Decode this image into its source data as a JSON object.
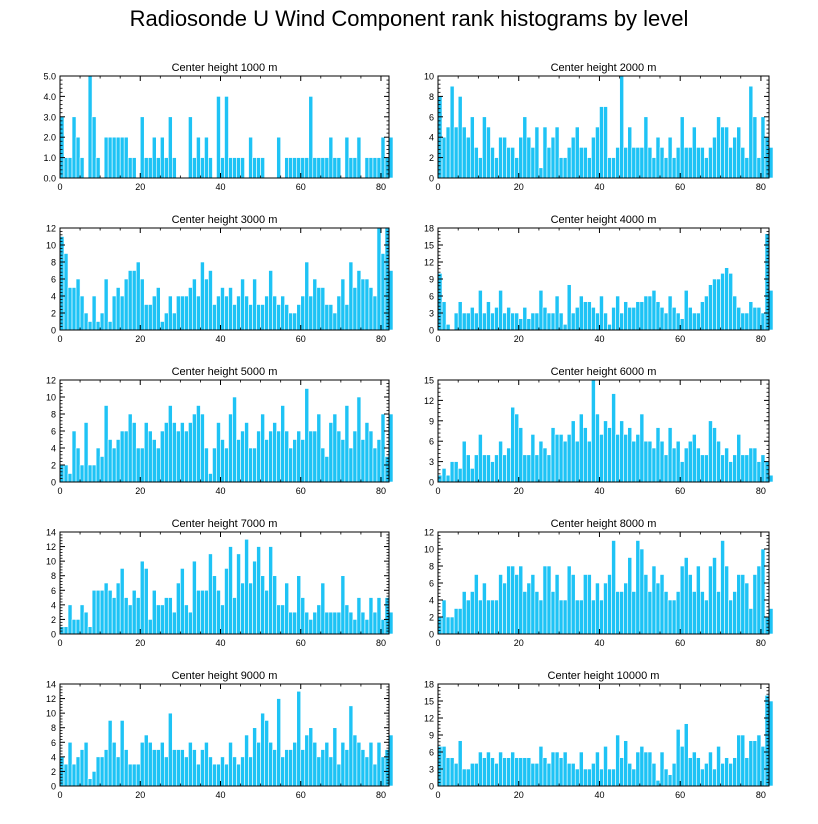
{
  "title": "Radiosonde U Wind Component rank histograms by level",
  "colors": {
    "bar": "#1ec3f5",
    "bar_edge": "#ffffff",
    "frame": "#000000"
  },
  "chart_data": [
    {
      "type": "bar",
      "title": "Center height 1000 m",
      "xlim": [
        0,
        82
      ],
      "ylim": [
        0,
        5
      ],
      "xticks": [
        0,
        20,
        40,
        60,
        80
      ],
      "yticks": [
        "0.0",
        "1.0",
        "2.0",
        "3.0",
        "4.0",
        "5.0"
      ],
      "ytick_values": [
        0,
        1,
        2,
        3,
        4,
        5
      ],
      "values": [
        3,
        1,
        1,
        3,
        2,
        1,
        0,
        5,
        3,
        1,
        0,
        2,
        2,
        2,
        2,
        2,
        2,
        1,
        1,
        0,
        3,
        1,
        1,
        2,
        1,
        2,
        1,
        3,
        1,
        0,
        0,
        0,
        3,
        1,
        2,
        1,
        2,
        1,
        0,
        4,
        1,
        4,
        1,
        1,
        1,
        1,
        0,
        2,
        1,
        1,
        1,
        0,
        0,
        0,
        2,
        0,
        1,
        1,
        1,
        1,
        1,
        1,
        4,
        1,
        1,
        1,
        1,
        2,
        1,
        1,
        0,
        2,
        1,
        1,
        2,
        0,
        1,
        1,
        1,
        1,
        2,
        1,
        2
      ]
    },
    {
      "type": "bar",
      "title": "Center height 2000 m",
      "xlim": [
        0,
        82
      ],
      "ylim": [
        0,
        10
      ],
      "xticks": [
        0,
        20,
        40,
        60,
        80
      ],
      "yticks": [
        "0",
        "2",
        "4",
        "6",
        "8",
        "10"
      ],
      "ytick_values": [
        0,
        2,
        4,
        6,
        8,
        10
      ],
      "values": [
        8,
        4,
        5,
        9,
        5,
        8,
        5,
        4,
        6,
        3,
        2,
        6,
        5,
        3,
        2,
        4,
        4,
        3,
        3,
        2,
        4,
        6,
        4,
        3,
        5,
        1,
        5,
        3,
        4,
        5,
        2,
        2,
        3,
        4,
        5,
        3,
        3,
        2,
        4,
        5,
        7,
        7,
        2,
        2,
        3,
        10,
        3,
        5,
        3,
        3,
        3,
        6,
        3,
        2,
        4,
        3,
        2,
        4,
        2,
        3,
        6,
        3,
        3,
        5,
        3,
        3,
        2,
        3,
        4,
        6,
        5,
        5,
        3,
        4,
        5,
        3,
        2,
        9,
        6,
        2,
        6,
        4,
        3
      ]
    },
    {
      "type": "bar",
      "title": "Center height 3000 m",
      "xlim": [
        0,
        82
      ],
      "ylim": [
        0,
        12
      ],
      "xticks": [
        0,
        20,
        40,
        60,
        80
      ],
      "yticks": [
        "0",
        "2",
        "4",
        "6",
        "8",
        "10",
        "12"
      ],
      "ytick_values": [
        0,
        2,
        4,
        6,
        8,
        10,
        12
      ],
      "values": [
        11,
        9,
        5,
        5,
        6,
        4,
        2,
        1,
        4,
        1,
        2,
        6,
        1,
        4,
        5,
        4,
        6,
        7,
        7,
        8,
        6,
        3,
        3,
        4,
        5,
        1,
        2,
        4,
        2,
        4,
        4,
        4,
        5,
        6,
        4,
        8,
        6,
        7,
        3,
        4,
        5,
        4,
        5,
        3,
        4,
        6,
        4,
        3,
        6,
        3,
        3,
        4,
        7,
        4,
        3,
        4,
        3,
        2,
        2,
        3,
        4,
        8,
        4,
        6,
        5,
        5,
        3,
        3,
        2,
        4,
        6,
        3,
        8,
        5,
        7,
        6,
        6,
        5,
        4,
        12,
        9,
        12,
        7
      ]
    },
    {
      "type": "bar",
      "title": "Center height 4000 m",
      "xlim": [
        0,
        82
      ],
      "ylim": [
        0,
        18
      ],
      "xticks": [
        0,
        20,
        40,
        60,
        80
      ],
      "yticks": [
        "0",
        "3",
        "6",
        "9",
        "12",
        "15",
        "18"
      ],
      "ytick_values": [
        0,
        3,
        6,
        9,
        12,
        15,
        18
      ],
      "values": [
        10,
        5,
        1,
        0,
        3,
        5,
        3,
        3,
        4,
        3,
        7,
        3,
        5,
        3,
        4,
        7,
        3,
        4,
        3,
        3,
        2,
        4,
        2,
        3,
        3,
        7,
        4,
        3,
        3,
        6,
        3,
        1,
        8,
        3,
        4,
        6,
        5,
        5,
        4,
        3,
        6,
        3,
        1,
        4,
        6,
        3,
        5,
        4,
        4,
        5,
        5,
        6,
        6,
        7,
        5,
        4,
        3,
        6,
        4,
        3,
        2,
        7,
        4,
        3,
        3,
        5,
        6,
        8,
        9,
        9,
        10,
        11,
        10,
        6,
        4,
        3,
        3,
        5,
        4,
        4,
        3,
        17,
        7
      ]
    },
    {
      "type": "bar",
      "title": "Center height 5000 m",
      "xlim": [
        0,
        82
      ],
      "ylim": [
        0,
        12
      ],
      "xticks": [
        0,
        20,
        40,
        60,
        80
      ],
      "yticks": [
        "0",
        "2",
        "4",
        "6",
        "8",
        "10",
        "12"
      ],
      "ytick_values": [
        0,
        2,
        4,
        6,
        8,
        10,
        12
      ],
      "values": [
        2,
        2,
        1,
        6,
        4,
        2,
        7,
        2,
        2,
        4,
        3,
        9,
        5,
        4,
        5,
        6,
        6,
        8,
        7,
        4,
        4,
        7,
        6,
        5,
        4,
        6,
        7,
        9,
        7,
        6,
        7,
        6,
        7,
        8,
        9,
        8,
        4,
        1,
        4,
        7,
        5,
        4,
        8,
        10,
        5,
        6,
        7,
        4,
        4,
        6,
        8,
        5,
        6,
        7,
        6,
        9,
        6,
        4,
        5,
        6,
        5,
        11,
        6,
        6,
        8,
        4,
        3,
        7,
        8,
        6,
        5,
        9,
        4,
        6,
        10,
        5,
        7,
        6,
        4,
        5,
        8,
        3,
        8
      ]
    },
    {
      "type": "bar",
      "title": "Center height 6000 m",
      "xlim": [
        0,
        82
      ],
      "ylim": [
        0,
        15
      ],
      "xticks": [
        0,
        20,
        40,
        60,
        80
      ],
      "yticks": [
        "0",
        "3",
        "6",
        "9",
        "12",
        "15"
      ],
      "ytick_values": [
        0,
        3,
        6,
        9,
        12,
        15
      ],
      "values": [
        1,
        2,
        1,
        3,
        3,
        2,
        6,
        4,
        2,
        4,
        7,
        4,
        4,
        3,
        4,
        6,
        4,
        5,
        11,
        10,
        8,
        4,
        4,
        7,
        4,
        6,
        5,
        4,
        8,
        7,
        7,
        6,
        7,
        9,
        6,
        10,
        8,
        6,
        15,
        10,
        7,
        9,
        8,
        13,
        7,
        9,
        7,
        8,
        6,
        7,
        10,
        6,
        6,
        5,
        8,
        6,
        4,
        8,
        5,
        6,
        3,
        5,
        6,
        7,
        5,
        4,
        4,
        9,
        8,
        6,
        4,
        5,
        3,
        4,
        7,
        4,
        4,
        5,
        5,
        3,
        4,
        3,
        1
      ]
    },
    {
      "type": "bar",
      "title": "Center height 7000 m",
      "xlim": [
        0,
        82
      ],
      "ylim": [
        0,
        14
      ],
      "xticks": [
        0,
        20,
        40,
        60,
        80
      ],
      "yticks": [
        "0",
        "2",
        "4",
        "6",
        "8",
        "10",
        "12",
        "14"
      ],
      "ytick_values": [
        0,
        2,
        4,
        6,
        8,
        10,
        12,
        14
      ],
      "values": [
        1,
        1,
        4,
        2,
        2,
        4,
        3,
        1,
        6,
        6,
        6,
        7,
        6,
        5,
        7,
        9,
        5,
        4,
        6,
        5,
        10,
        9,
        2,
        6,
        4,
        4,
        5,
        5,
        3,
        7,
        9,
        4,
        3,
        10,
        6,
        6,
        6,
        11,
        8,
        6,
        4,
        9,
        12,
        5,
        11,
        7,
        13,
        7,
        10,
        12,
        8,
        6,
        12,
        8,
        4,
        4,
        7,
        3,
        3,
        8,
        5,
        3,
        2,
        3,
        4,
        7,
        3,
        3,
        3,
        3,
        8,
        4,
        3,
        2,
        5,
        3,
        2,
        5,
        3,
        5,
        2,
        5,
        3
      ]
    },
    {
      "type": "bar",
      "title": "Center height 8000 m",
      "xlim": [
        0,
        82
      ],
      "ylim": [
        0,
        12
      ],
      "xticks": [
        0,
        20,
        40,
        60,
        80
      ],
      "yticks": [
        "0",
        "2",
        "4",
        "6",
        "8",
        "10",
        "12"
      ],
      "ytick_values": [
        0,
        2,
        4,
        6,
        8,
        10,
        12
      ],
      "values": [
        2,
        4,
        2,
        2,
        3,
        3,
        5,
        4,
        5,
        7,
        4,
        6,
        4,
        4,
        4,
        7,
        6,
        8,
        8,
        7,
        8,
        5,
        6,
        7,
        5,
        4,
        8,
        8,
        5,
        7,
        4,
        4,
        8,
        7,
        4,
        4,
        7,
        7,
        4,
        6,
        4,
        6,
        7,
        11,
        5,
        5,
        6,
        9,
        5,
        11,
        10,
        7,
        5,
        8,
        6,
        7,
        5,
        4,
        4,
        5,
        8,
        9,
        7,
        5,
        8,
        5,
        4,
        8,
        9,
        5,
        11,
        8,
        4,
        5,
        7,
        7,
        6,
        3,
        7,
        8,
        10,
        2,
        3
      ]
    },
    {
      "type": "bar",
      "title": "Center height 9000 m",
      "xlim": [
        0,
        82
      ],
      "ylim": [
        0,
        14
      ],
      "xticks": [
        0,
        20,
        40,
        60,
        80
      ],
      "yticks": [
        "0",
        "2",
        "4",
        "6",
        "8",
        "10",
        "12",
        "14"
      ],
      "ytick_values": [
        0,
        2,
        4,
        6,
        8,
        10,
        12,
        14
      ],
      "values": [
        4,
        3,
        6,
        3,
        4,
        5,
        6,
        1,
        2,
        4,
        4,
        5,
        9,
        6,
        4,
        9,
        5,
        3,
        3,
        3,
        6,
        7,
        6,
        5,
        5,
        6,
        4,
        10,
        5,
        5,
        5,
        4,
        6,
        5,
        3,
        5,
        6,
        4,
        3,
        3,
        4,
        3,
        6,
        4,
        3,
        4,
        7,
        4,
        8,
        6,
        10,
        9,
        6,
        5,
        12,
        4,
        5,
        5,
        6,
        13,
        5,
        7,
        8,
        6,
        4,
        5,
        6,
        4,
        8,
        3,
        6,
        5,
        11,
        7,
        6,
        5,
        4,
        6,
        3,
        6,
        4,
        5,
        7
      ]
    },
    {
      "type": "bar",
      "title": "Center height 10000 m",
      "xlim": [
        0,
        82
      ],
      "ylim": [
        0,
        18
      ],
      "xticks": [
        0,
        20,
        40,
        60,
        80
      ],
      "yticks": [
        "0",
        "3",
        "6",
        "9",
        "12",
        "15",
        "18"
      ],
      "ytick_values": [
        0,
        3,
        6,
        9,
        12,
        15,
        18
      ],
      "values": [
        7,
        7,
        5,
        5,
        4,
        8,
        3,
        3,
        4,
        4,
        6,
        5,
        6,
        5,
        4,
        6,
        5,
        5,
        6,
        5,
        5,
        5,
        5,
        4,
        4,
        7,
        5,
        4,
        6,
        6,
        5,
        6,
        4,
        4,
        3,
        6,
        3,
        3,
        4,
        6,
        3,
        7,
        3,
        3,
        9,
        5,
        8,
        4,
        3,
        6,
        7,
        6,
        6,
        4,
        1,
        6,
        3,
        2,
        4,
        10,
        7,
        11,
        5,
        6,
        5,
        3,
        4,
        6,
        3,
        7,
        4,
        5,
        4,
        5,
        9,
        9,
        5,
        8,
        8,
        9,
        7,
        16,
        15
      ]
    }
  ]
}
